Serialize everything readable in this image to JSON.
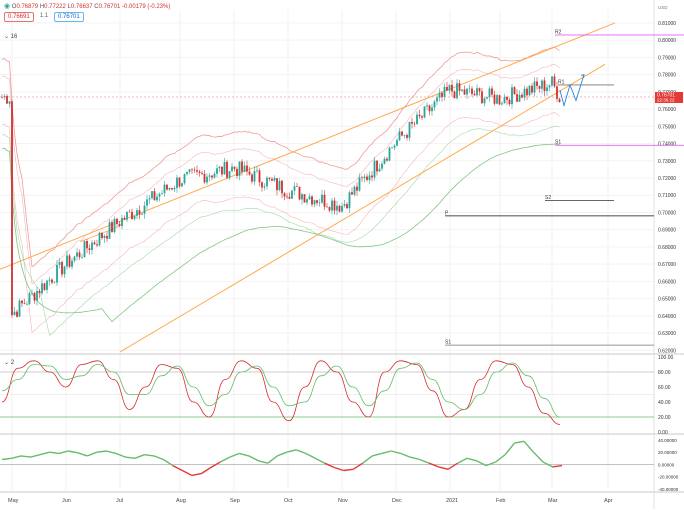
{
  "header": {
    "symbol_icon": "circle-dot-icon",
    "ohlc": {
      "o_label": "O",
      "o": "0.76879",
      "h_label": "H",
      "h": "0.77222",
      "l_label": "L",
      "l": "0.76637",
      "c_label": "C",
      "c": "0.76701",
      "change": "-0.00179 (-0.23%)"
    },
    "sell_price": "0.76691",
    "spread": "1.1",
    "buy_price": "0.76701"
  },
  "indicator_labels": {
    "main": "16",
    "osc": "2"
  },
  "currency": "USD",
  "chart_data": [
    {
      "type": "candlestick",
      "title": "",
      "x_tick_labels": [
        "May",
        "Jun",
        "Jul",
        "Aug",
        "Sep",
        "Oct",
        "Nov",
        "Dec",
        "2021",
        "Feb",
        "Mar",
        "Apr"
      ],
      "y_tick_labels": [
        "0.81000",
        "0.80000",
        "0.79000",
        "0.78000",
        "0.77000",
        "0.76000",
        "0.75000",
        "0.74000",
        "0.73000",
        "0.72000",
        "0.71000",
        "0.70000",
        "0.69000",
        "0.68000",
        "0.67000",
        "0.66000",
        "0.65000",
        "0.64000",
        "0.63000",
        "0.62000"
      ],
      "ylim": [
        0.619,
        0.8175
      ],
      "current_price": {
        "value": 0.76701,
        "label": "0.76701",
        "sublabel": "22:36:22"
      },
      "price_path_monthly_close": [
        {
          "x": "May",
          "y": 0.641
        },
        {
          "x": "Jun",
          "y": 0.67
        },
        {
          "x": "Jul",
          "y": 0.695
        },
        {
          "x": "Aug",
          "y": 0.719
        },
        {
          "x": "Sep",
          "y": 0.726
        },
        {
          "x": "Oct",
          "y": 0.713
        },
        {
          "x": "Nov",
          "y": 0.704
        },
        {
          "x": "Dec",
          "y": 0.741
        },
        {
          "x": "2021",
          "y": 0.771
        },
        {
          "x": "Feb",
          "y": 0.766
        },
        {
          "x": "Mar",
          "y": 0.775
        }
      ],
      "pivot_levels": [
        {
          "label": "R2",
          "value": 0.803
        },
        {
          "label": "R1",
          "value": 0.774
        },
        {
          "label": "S1",
          "value": 0.739
        },
        {
          "label": "S2",
          "value": 0.707
        },
        {
          "label": "P",
          "value": 0.698
        },
        {
          "label": "S1",
          "value": 0.623
        }
      ],
      "colors": {
        "up": "#26a69a",
        "down": "#d32f2f",
        "channel": "#ffa94d",
        "bands": "#ef9a9a",
        "ma": "#81c784",
        "pivot_magenta": "#e040fb",
        "projection": "#1e88e5"
      }
    },
    {
      "type": "line",
      "title": "",
      "y_tick_labels": [
        "100.00",
        "80.00",
        "60.00",
        "40.00",
        "20.00",
        "0.00"
      ],
      "ylim": [
        0,
        100
      ],
      "levels": [
        80,
        20
      ],
      "series": [
        {
          "values": [
            40,
            85,
            95,
            80,
            60,
            90,
            95,
            70,
            30,
            60,
            90,
            85,
            40,
            20,
            70,
            95,
            85,
            40,
            15,
            60,
            95,
            80,
            40,
            20,
            80,
            95,
            90,
            55,
            20,
            30,
            70,
            95,
            90,
            60,
            25,
            10
          ]
        },
        {
          "values": [
            55,
            70,
            90,
            88,
            70,
            75,
            90,
            80,
            50,
            50,
            75,
            88,
            60,
            35,
            50,
            80,
            88,
            60,
            35,
            40,
            75,
            88,
            60,
            35,
            55,
            85,
            92,
            70,
            40,
            30,
            50,
            80,
            92,
            75,
            45,
            20
          ]
        }
      ]
    },
    {
      "type": "line",
      "title": "",
      "y_tick_labels": [
        "40.00000",
        "20.00000",
        "0.00000",
        "-20.00000",
        "-40.00000"
      ],
      "ylim": [
        -42,
        45
      ],
      "zero_line": 0,
      "series": [
        {
          "values": [
            8,
            10,
            14,
            12,
            16,
            20,
            18,
            22,
            19,
            14,
            20,
            22,
            18,
            12,
            10,
            16,
            14,
            8,
            -2,
            -10,
            -18,
            -15,
            -5,
            4,
            12,
            18,
            14,
            6,
            2,
            14,
            20,
            24,
            18,
            10,
            2,
            -5,
            -10,
            -8,
            2,
            14,
            18,
            22,
            18,
            12,
            8,
            2,
            -4,
            -8,
            2,
            10,
            6,
            -2,
            4,
            16,
            35,
            38,
            20,
            4,
            -4,
            -2
          ]
        }
      ]
    }
  ]
}
